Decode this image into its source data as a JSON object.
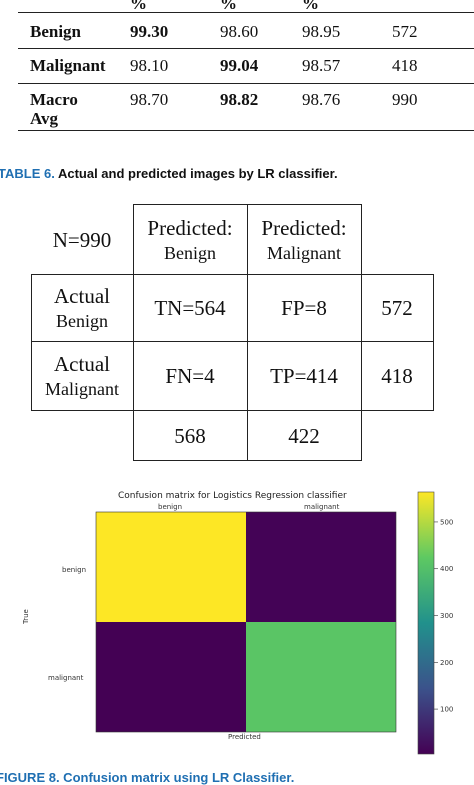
{
  "metrics_table": {
    "header_units": [
      "%",
      "%",
      "%"
    ],
    "rows": [
      {
        "label": "Benign",
        "precision": "99.30",
        "recall": "98.60",
        "f1": "98.95",
        "support": "572"
      },
      {
        "label": "Malignant",
        "precision": "98.10",
        "recall": "99.04",
        "f1": "98.57",
        "support": "418"
      },
      {
        "label_line1": "Macro",
        "label_line2": "Avg",
        "precision": "98.70",
        "recall": "98.82",
        "f1": "98.76",
        "support": "990"
      }
    ]
  },
  "caption": {
    "label": "TABLE 6.",
    "text": "Actual and predicted images by LR classifier."
  },
  "confusion_table": {
    "corner": "N=990",
    "pred_benign_line1": "Predicted:",
    "pred_benign_line2": "Benign",
    "pred_malignant_line1": "Predicted:",
    "pred_malignant_line2": "Malignant",
    "actual_benign_line1": "Actual",
    "actual_benign_line2": "Benign",
    "actual_malignant_line1": "Actual",
    "actual_malignant_line2": "Malignant",
    "tn": "TN=564",
    "fp": "FP=8",
    "fn": "FN=4",
    "tp": "TP=414",
    "row_total_benign": "572",
    "row_total_malignant": "418",
    "col_total_benign": "568",
    "col_total_malignant": "422"
  },
  "figure": {
    "title": "Confusion matrix for Logistics Regression classifier",
    "top_labels": [
      "benign",
      "malignant"
    ],
    "left_labels": [
      "benign",
      "malignant"
    ],
    "ylabel": "True",
    "xlabel": "Predicted",
    "colors": {
      "viridis_low": "#440154",
      "viridis_mid": "#21918c",
      "viridis_high": "#fde725",
      "cell_tn": "#fde725",
      "cell_fp": "#440154",
      "cell_fn": "#440154",
      "cell_tp": "#4ac16d"
    }
  },
  "chart_data": {
    "type": "heatmap",
    "title": "Confusion matrix for Logistics Regression classifier",
    "xlabel": "Predicted",
    "ylabel": "True",
    "x_categories": [
      "benign",
      "malignant"
    ],
    "y_categories": [
      "benign",
      "malignant"
    ],
    "values": [
      [
        564,
        8
      ],
      [
        4,
        414
      ]
    ],
    "colorbar": {
      "ticks": [
        100,
        200,
        300,
        400,
        500
      ],
      "range": [
        4,
        564
      ],
      "colormap": "viridis"
    }
  },
  "figure_caption": {
    "text": "FIGURE 8. Confusion matrix using LR Classifier."
  }
}
